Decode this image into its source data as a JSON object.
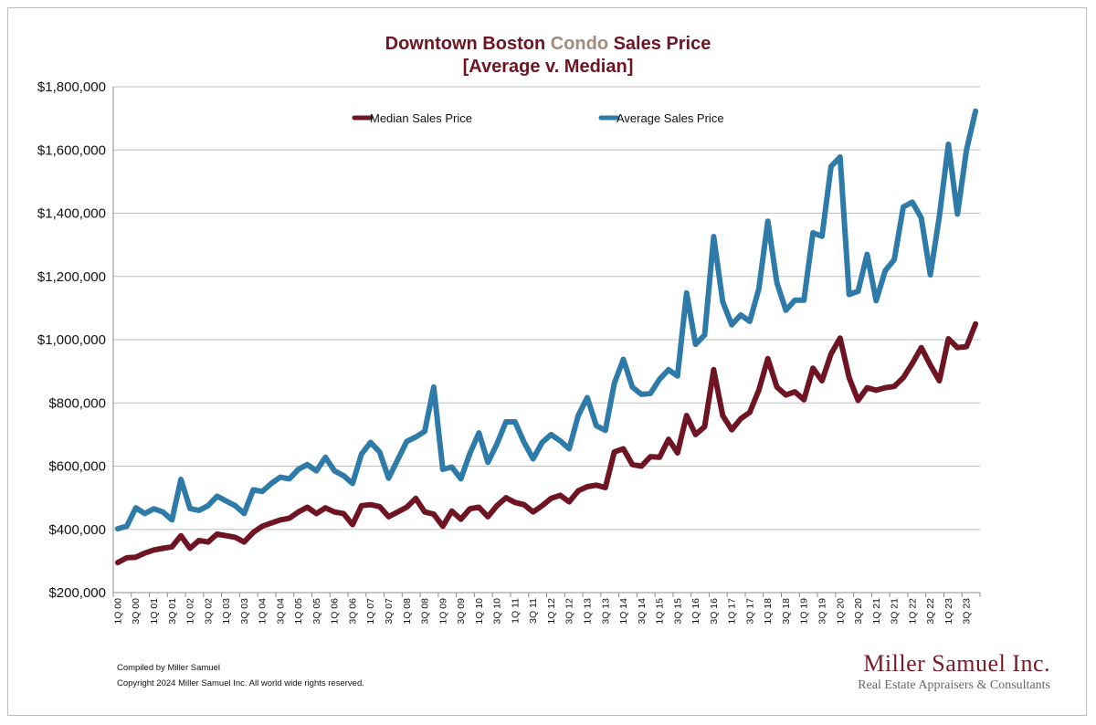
{
  "title": {
    "part1": "Downtown Boston ",
    "part2": "Condo",
    "part3": " Sales Price",
    "line2": "[Average v. Median]"
  },
  "colors": {
    "maroon": "#6e1423",
    "blue": "#2e7aa8",
    "tan": "#a08c7d"
  },
  "footer": {
    "compiled": "Compiled by Miller Samuel",
    "copyright": "Copyright 2024 Miller Samuel Inc.  All world wide rights reserved."
  },
  "logo": {
    "line1": "Miller Samuel Inc.",
    "line2": "Real Estate Appraisers & Consultants"
  },
  "chart_data": {
    "type": "line",
    "title": "Downtown Boston Condo Sales Price [Average v. Median]",
    "xlabel": "",
    "ylabel": "",
    "ylim": [
      200000,
      1800000
    ],
    "yticks": [
      200000,
      400000,
      600000,
      800000,
      1000000,
      1200000,
      1400000,
      1600000,
      1800000
    ],
    "ytick_labels": [
      "$200,000",
      "$400,000",
      "$600,000",
      "$800,000",
      "$1,000,000",
      "$1,200,000",
      "$1,400,000",
      "$1,600,000",
      "$1,800,000"
    ],
    "xtick_labels": [
      "1Q 00",
      "3Q 00",
      "1Q 01",
      "3Q 01",
      "1Q 02",
      "3Q 02",
      "1Q 03",
      "3Q 03",
      "1Q 04",
      "3Q 04",
      "1Q 05",
      "3Q 05",
      "1Q 06",
      "3Q 06",
      "1Q 07",
      "3Q 07",
      "1Q 08",
      "3Q 08",
      "1Q 09",
      "3Q 09",
      "1Q 10",
      "3Q 10",
      "1Q 11",
      "3Q 11",
      "1Q 12",
      "3Q 12",
      "1Q 13",
      "3Q 13",
      "1Q 14",
      "3Q 14",
      "1Q 15",
      "3Q 15",
      "1Q 16",
      "3Q 16",
      "1Q 17",
      "3Q 17",
      "1Q 18",
      "3Q 18",
      "1Q 19",
      "3Q 19",
      "1Q 20",
      "3Q 20",
      "1Q 21",
      "3Q 21",
      "1Q 22",
      "3Q 22",
      "1Q 23",
      "3Q 23"
    ],
    "grid": true,
    "legend": "top-center",
    "series": [
      {
        "name": "Median Sales Price",
        "color": "#6e1423",
        "values": [
          295000,
          310000,
          312000,
          325000,
          335000,
          340000,
          345000,
          380000,
          340000,
          365000,
          360000,
          385000,
          380000,
          375000,
          360000,
          390000,
          410000,
          420000,
          430000,
          435000,
          455000,
          470000,
          450000,
          468000,
          455000,
          450000,
          415000,
          475000,
          478000,
          472000,
          440000,
          455000,
          470000,
          498000,
          455000,
          448000,
          410000,
          458000,
          432000,
          465000,
          470000,
          440000,
          475000,
          500000,
          485000,
          478000,
          455000,
          475000,
          498000,
          508000,
          487000,
          522000,
          535000,
          540000,
          532000,
          645000,
          655000,
          605000,
          600000,
          630000,
          628000,
          685000,
          642000,
          760000,
          700000,
          725000,
          905000,
          760000,
          715000,
          750000,
          770000,
          840000,
          940000,
          850000,
          825000,
          835000,
          810000,
          910000,
          870000,
          955000,
          1005000,
          880000,
          808000,
          848000,
          840000,
          848000,
          852000,
          880000,
          925000,
          975000,
          920000,
          870000,
          1003000,
          975000,
          978000,
          1050000
        ]
      },
      {
        "name": "Average Sales Price",
        "color": "#2e7aa8",
        "values": [
          402000,
          410000,
          468000,
          450000,
          465000,
          455000,
          430000,
          558000,
          466000,
          460000,
          475000,
          505000,
          490000,
          475000,
          450000,
          525000,
          520000,
          545000,
          565000,
          560000,
          590000,
          605000,
          585000,
          628000,
          585000,
          570000,
          545000,
          638000,
          675000,
          645000,
          562000,
          620000,
          678000,
          692000,
          710000,
          850000,
          590000,
          597000,
          560000,
          640000,
          705000,
          612000,
          670000,
          740000,
          740000,
          675000,
          623000,
          675000,
          700000,
          680000,
          655000,
          760000,
          817000,
          728000,
          713000,
          862000,
          938000,
          850000,
          827000,
          830000,
          875000,
          905000,
          885000,
          1148000,
          985000,
          1015000,
          1326000,
          1120000,
          1047000,
          1078000,
          1058000,
          1160000,
          1375000,
          1180000,
          1093000,
          1125000,
          1125000,
          1338000,
          1327000,
          1548000,
          1578000,
          1143000,
          1153000,
          1270000,
          1123000,
          1218000,
          1253000,
          1420000,
          1435000,
          1385000,
          1205000,
          1390000,
          1618000,
          1397000,
          1600000,
          1723000
        ]
      }
    ]
  }
}
